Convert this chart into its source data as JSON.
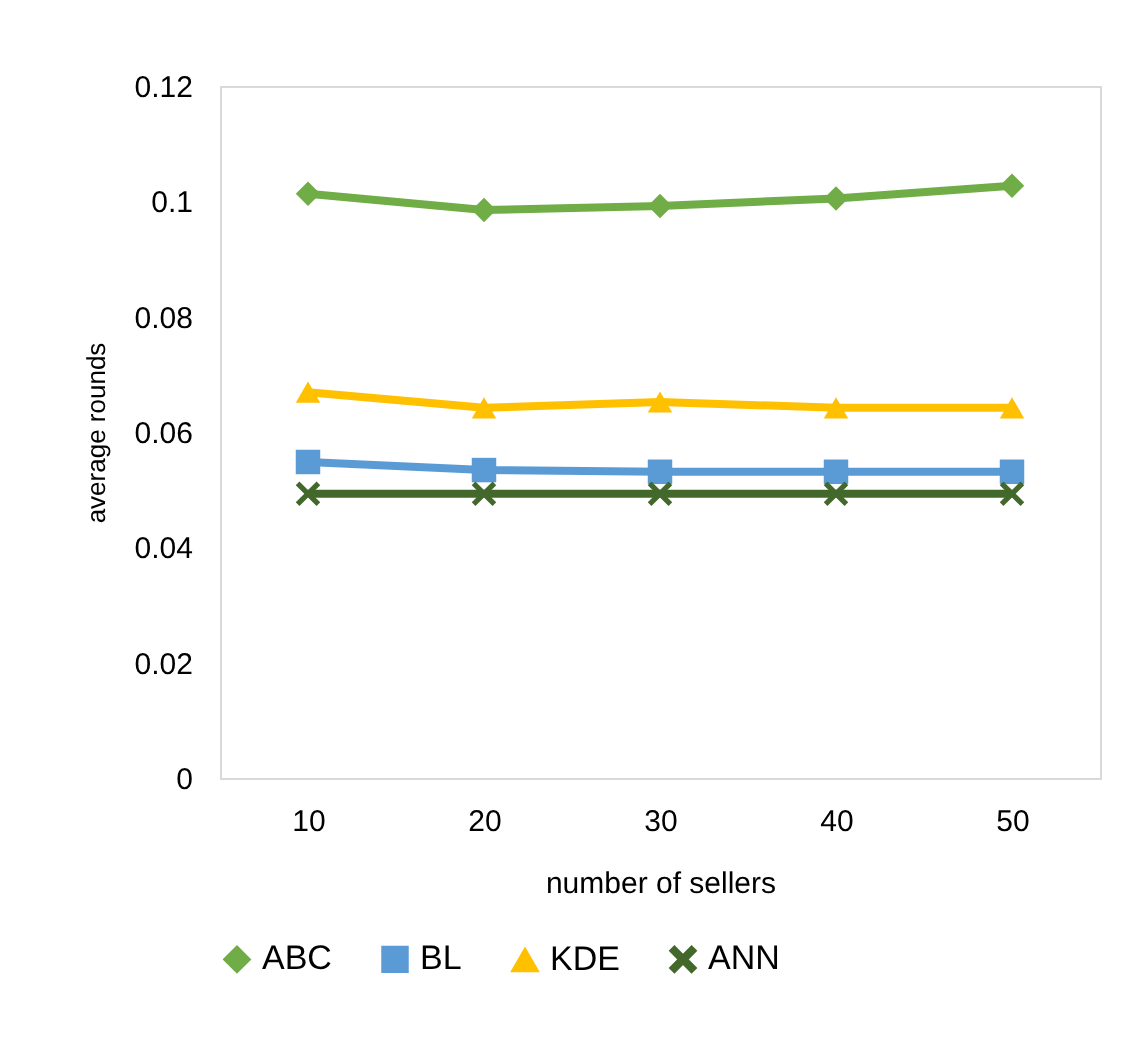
{
  "chart_data": {
    "type": "line",
    "xlabel": "number of sellers",
    "ylabel": "average  rounds",
    "categories": [
      "10",
      "20",
      "30",
      "40",
      "50"
    ],
    "series": [
      {
        "name": "ABC",
        "color": "#70ad47",
        "marker": "diamond",
        "values": [
          0.1013,
          0.0985,
          0.0992,
          0.1005,
          0.1027
        ]
      },
      {
        "name": "BL",
        "color": "#5b9bd5",
        "marker": "square",
        "values": [
          0.0548,
          0.0534,
          0.0531,
          0.0531,
          0.0531
        ]
      },
      {
        "name": "KDE",
        "color": "#ffc000",
        "marker": "triangle",
        "values": [
          0.0669,
          0.0642,
          0.0652,
          0.0642,
          0.0642
        ]
      },
      {
        "name": "ANN",
        "color": "#43682b",
        "marker": "cross",
        "values": [
          0.0493,
          0.0493,
          0.0493,
          0.0493,
          0.0493
        ]
      }
    ],
    "ylim": [
      0,
      0.12
    ],
    "yticks": [
      0,
      0.02,
      0.04,
      0.06,
      0.08,
      0.1,
      0.12
    ],
    "grid": false,
    "legend": "bottom",
    "line_style": "solid"
  }
}
